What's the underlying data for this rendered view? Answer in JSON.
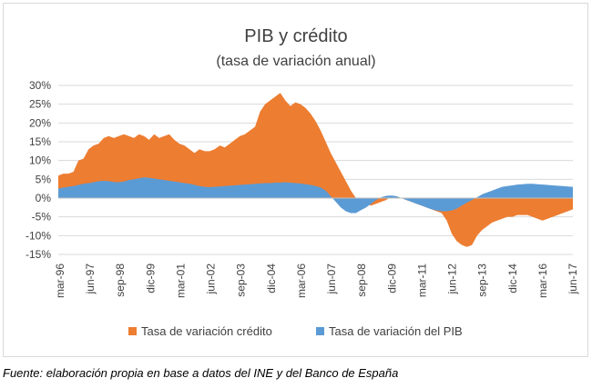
{
  "chart_data": {
    "type": "area",
    "title": "PIB y crédito",
    "subtitle": "(tasa de variación anual)",
    "xlabel": "",
    "ylabel": "",
    "ylim": [
      -15,
      30
    ],
    "y_ticks": [
      "30%",
      "25%",
      "20%",
      "15%",
      "10%",
      "5%",
      "0%",
      "-5%",
      "-10%",
      "-15%"
    ],
    "x_tick_labels": [
      "mar-96",
      "jun-97",
      "sep-98",
      "dic-99",
      "mar-01",
      "jun-02",
      "sep-03",
      "dic-04",
      "mar-06",
      "jun-07",
      "sep-08",
      "dic-09",
      "mar-11",
      "jun-12",
      "sep-13",
      "dic-14",
      "mar-16",
      "jun-17"
    ],
    "grid": true,
    "legend_position": "bottom",
    "x_start": "mar-96",
    "x_end": "jun-17",
    "series": [
      {
        "name": "Tasa de variación crédito",
        "color": "#ED7D31",
        "values": [
          6.0,
          6.5,
          6.5,
          7.0,
          10.0,
          10.5,
          13.0,
          14.0,
          14.5,
          16.0,
          16.5,
          16.0,
          16.5,
          17.0,
          16.5,
          16.0,
          17.0,
          16.5,
          15.5,
          17.0,
          16.0,
          16.5,
          17.0,
          15.5,
          14.5,
          14.0,
          13.0,
          12.0,
          13.0,
          12.5,
          12.5,
          13.0,
          14.0,
          13.5,
          14.5,
          15.5,
          16.5,
          17.0,
          18.0,
          19.0,
          23.0,
          25.0,
          26.0,
          27.0,
          28.0,
          26.0,
          24.5,
          25.5,
          25.0,
          24.0,
          22.5,
          20.5,
          18.0,
          15.0,
          12.0,
          9.5,
          7.0,
          4.5,
          2.0,
          0.0,
          -1.0,
          -1.5,
          -2.0,
          -1.5,
          -1.0,
          -0.5,
          0.5,
          0.5,
          0.0,
          -0.5,
          -1.0,
          -1.5,
          -2.0,
          -2.5,
          -3.0,
          -3.5,
          -4.0,
          -6.0,
          -9.5,
          -11.5,
          -12.5,
          -13.0,
          -12.5,
          -10.0,
          -8.5,
          -7.5,
          -6.5,
          -6.0,
          -5.5,
          -5.0,
          -5.0,
          -4.5,
          -4.5,
          -4.5,
          -5.0,
          -5.5,
          -6.0,
          -5.5,
          -5.0,
          -4.5,
          -4.0,
          -3.5,
          -3.0
        ]
      },
      {
        "name": "Tasa de variación del PIB",
        "color": "#5B9BD5",
        "values": [
          2.5,
          2.8,
          3.0,
          3.2,
          3.5,
          3.8,
          4.0,
          4.2,
          4.5,
          4.6,
          4.5,
          4.3,
          4.2,
          4.4,
          4.8,
          5.0,
          5.3,
          5.5,
          5.4,
          5.2,
          5.0,
          4.8,
          4.6,
          4.4,
          4.2,
          4.0,
          3.8,
          3.5,
          3.2,
          3.0,
          2.9,
          3.0,
          3.1,
          3.2,
          3.3,
          3.4,
          3.5,
          3.6,
          3.7,
          3.8,
          3.9,
          4.0,
          4.0,
          4.1,
          4.1,
          4.2,
          4.1,
          4.0,
          3.9,
          3.7,
          3.5,
          3.2,
          2.8,
          2.0,
          0.5,
          -1.0,
          -2.5,
          -3.5,
          -4.0,
          -4.0,
          -3.2,
          -2.5,
          -1.5,
          -0.5,
          0.2,
          0.6,
          0.7,
          0.5,
          0.0,
          -0.5,
          -1.0,
          -1.5,
          -2.0,
          -2.5,
          -3.0,
          -3.3,
          -3.5,
          -3.5,
          -3.3,
          -2.8,
          -2.0,
          -1.2,
          -0.5,
          0.2,
          1.0,
          1.5,
          2.0,
          2.5,
          3.0,
          3.2,
          3.4,
          3.6,
          3.7,
          3.8,
          3.8,
          3.7,
          3.6,
          3.5,
          3.4,
          3.3,
          3.2,
          3.1,
          3.0
        ]
      }
    ]
  },
  "footer": {
    "source": "Fuente: elaboración propia en base a datos del INE y del Banco de España"
  }
}
